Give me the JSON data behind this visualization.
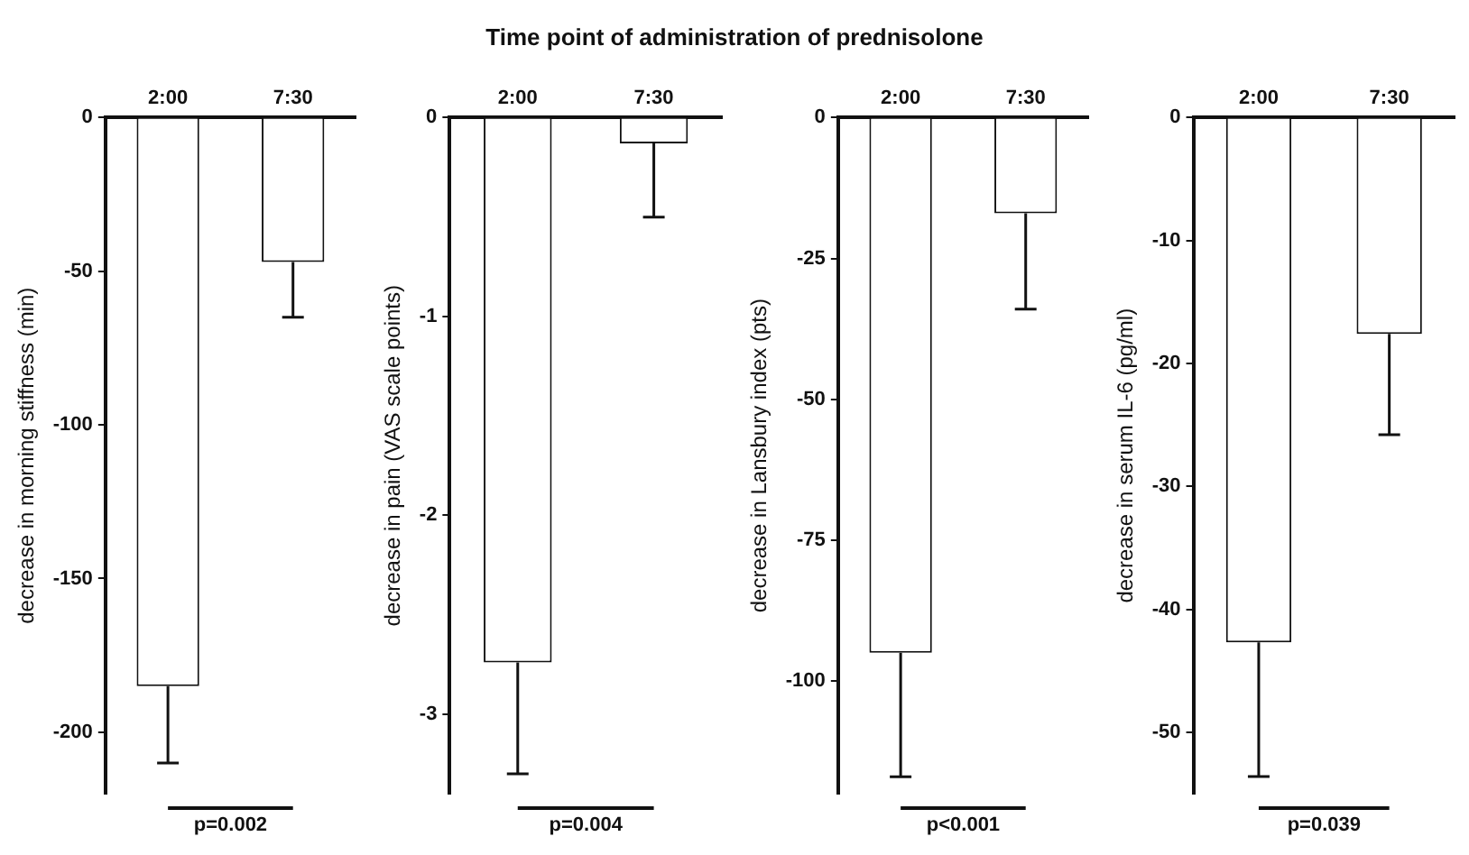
{
  "chart_data": [
    {
      "type": "bar",
      "ylabel": "decrease in morning stiffness (min)",
      "categories": [
        "2:00",
        "7:30"
      ],
      "values": [
        -185,
        -47
      ],
      "errors": [
        [
          -210,
          -185
        ],
        [
          -65,
          -47
        ]
      ],
      "color": "#ffffff",
      "ylim": [
        -220,
        0
      ],
      "yticks": [
        0,
        -50,
        -100,
        -150,
        -200
      ],
      "grid": false,
      "legend": false,
      "annotations": [
        "p=0.002"
      ]
    },
    {
      "type": "bar",
      "title": "Time point of administration of prednisolone",
      "ylabel": "decrease in pain (VAS scale points)",
      "categories": [
        "2:00",
        "7:30"
      ],
      "values": [
        -2.74,
        -0.13
      ],
      "errors": [
        [
          -3.3,
          -2.74
        ],
        [
          -0.5,
          -0.13
        ]
      ],
      "color": "#ffffff",
      "ylim": [
        -3.4,
        0
      ],
      "yticks": [
        0,
        -1,
        -2,
        -3
      ],
      "grid": false,
      "legend": false,
      "annotations": [
        "p=0.004"
      ]
    },
    {
      "type": "bar",
      "ylabel": "decrease in Lansbury index (pts)",
      "categories": [
        "2:00",
        "7:30"
      ],
      "values": [
        -95,
        -17
      ],
      "errors": [
        [
          -117,
          -95
        ],
        [
          -34,
          -17
        ]
      ],
      "color": "#ffffff",
      "ylim": [
        -120,
        0
      ],
      "yticks": [
        0,
        -25,
        -50,
        -75,
        -100
      ],
      "grid": false,
      "legend": false,
      "annotations": [
        "p<0.001"
      ]
    },
    {
      "type": "bar",
      "ylabel": "decrease in serum IL-6 (pg/ml)",
      "categories": [
        "2:00",
        "7:30"
      ],
      "values": [
        -42.7,
        -17.6
      ],
      "errors": [
        [
          -53.6,
          -42.7
        ],
        [
          -25.8,
          -17.6
        ]
      ],
      "color": "#ffffff",
      "ylim": [
        -55,
        0
      ],
      "yticks": [
        0,
        -10,
        -20,
        -30,
        -40,
        -50
      ],
      "grid": false,
      "legend": false,
      "annotations": [
        "p=0.039"
      ]
    }
  ]
}
